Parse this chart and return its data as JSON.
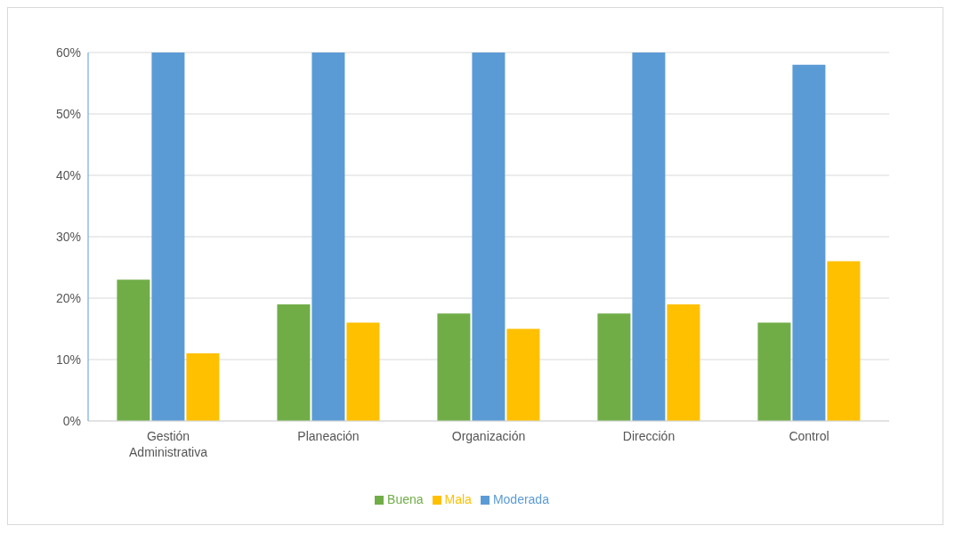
{
  "chart_data": {
    "type": "bar",
    "categories": [
      "Gestión Administrativa",
      "Planeación",
      "Organización",
      "Dirección",
      "Control"
    ],
    "series": [
      {
        "name": "Buena",
        "color": "#70ad47",
        "values": [
          23,
          19,
          17.5,
          17.5,
          16
        ]
      },
      {
        "name": "Moderada",
        "color": "#5b9bd5",
        "values": [
          60,
          60,
          60,
          60,
          58
        ]
      },
      {
        "name": "Mala",
        "color": "#ffc000",
        "values": [
          11,
          16,
          15,
          19,
          26
        ]
      }
    ],
    "ylim": [
      0,
      60
    ],
    "yticks": [
      {
        "value": 0,
        "label": "0%"
      },
      {
        "value": 10,
        "label": "10%"
      },
      {
        "value": 20,
        "label": "20%"
      },
      {
        "value": 30,
        "label": "30%"
      },
      {
        "value": 40,
        "label": "40%"
      },
      {
        "value": 50,
        "label": "50%"
      },
      {
        "value": 60,
        "label": "60%"
      }
    ],
    "grid": "y",
    "legend": "bottom"
  }
}
